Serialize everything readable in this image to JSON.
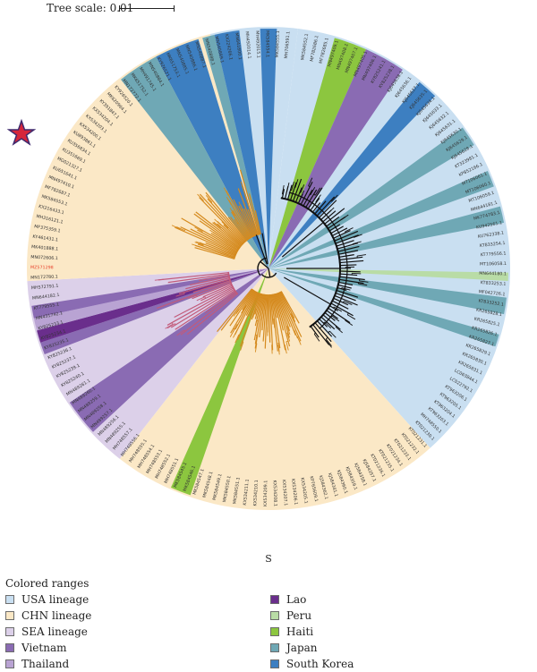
{
  "scale_label": "Tree scale: 0.01",
  "gene_label": "S",
  "legend": {
    "title": "Colored ranges",
    "items": [
      {
        "label": "USA lineage",
        "color": "#c9dff1"
      },
      {
        "label": "CHN lineage",
        "color": "#fbe8c6"
      },
      {
        "label": "SEA lineage",
        "color": "#dcd0e9"
      },
      {
        "label": "Vietnam",
        "color": "#8a6bb3"
      },
      {
        "label": "Thailand",
        "color": "#b9a3d3"
      },
      {
        "label": "Lao",
        "color": "#6a2e8c"
      },
      {
        "label": "Peru",
        "color": "#b9dca6"
      },
      {
        "label": "Haiti",
        "color": "#8cc63f"
      },
      {
        "label": "Japan",
        "color": "#6fa8b5"
      },
      {
        "label": "South Korea",
        "color": "#3d7fc1"
      }
    ]
  },
  "highlighted_leaf": "MZ571298",
  "leaves": [
    "MK584552.1",
    "MF782686.1",
    "MF782685.1",
    "MN497409.1",
    "MN497408.1",
    "MN497407.1",
    "MN497405.1",
    "MN497406.1",
    "KY825241.1",
    "KY825238.1",
    "KJ645638.1",
    "KJ645636.1",
    "KJ645637.1",
    "KJ645635.1",
    "KJ645634.1",
    "KJ645633.1",
    "KJ645632.1",
    "KJ645631.1",
    "KJ645630.1",
    "KJ645629.1",
    "KJ645628.1",
    "KT323981.1",
    "KP852166.1",
    "MT106061.1",
    "MT106060.1",
    "MT106059.1",
    "MN644181.1",
    "MK774783.1",
    "KU942561.1",
    "KU762338.1",
    "KT833254.1",
    "KT779556.1",
    "MT106058.1",
    "MN644180.1",
    "KT833253.1",
    "MF042726.1",
    "KT833252.1",
    "KR265828.1",
    "KR265825.1",
    "KR265826.1",
    "KR265827.1",
    "KR265829.1",
    "KR265830.1",
    "KR265831.1",
    "LC063844.1",
    "LC022792.1",
    "KT963206.1",
    "KT963205.1",
    "KT963204.1",
    "KT963203.1",
    "MH748550.1",
    "KT021230.1",
    "KT021231.1",
    "KT021232.1",
    "KT021233.1",
    "KT021234.1",
    "KT021235.1",
    "KT021236.1",
    "KJ584357.1",
    "KJ584358.1",
    "KJ584359.1",
    "KJ584360.1",
    "KJ584361.1",
    "KJ584362.1",
    "KP765609.1",
    "KX534205.1",
    "KX534206.1",
    "KX534207.1",
    "KX534208.1",
    "KX534209.1",
    "KX534210.1",
    "KX534211.1",
    "MK584551.1",
    "MK584550.1",
    "MK584549.1",
    "MK584548.1",
    "MK584547.1",
    "MK584546.1",
    "MK584545.1",
    "MH748551.1",
    "MH748552.1",
    "MH748553.1",
    "MH748554.1",
    "MH748555.1",
    "MH748556.1",
    "MH748557.1",
    "MN489255.1",
    "MN489256.1",
    "MN489257.1",
    "MN489258.1",
    "MN489259.1",
    "MN489260.1",
    "MN489261.1",
    "KY825240.1",
    "KY825239.1",
    "KY825237.1",
    "KY825236.1",
    "KY825235.1",
    "KY825234.1",
    "KY825233.1",
    "MN431742.1",
    "KT779555.1",
    "MN644182.1",
    "MH572791.1",
    "MN172780.1",
    "MZ571298",
    "MN072606.1",
    "MK401888.1",
    "KY461431.1",
    "MF375359.1",
    "MH316121.1",
    "KX216433.1",
    "MK584553.1",
    "MF782687.1",
    "MN497410.1",
    "KU651641.1",
    "MG021327.1",
    "KU351669.1",
    "KU356834.1",
    "KU893861.1",
    "KX534200.1",
    "KX534203.1",
    "KX534204.1",
    "KY391847.1",
    "MK620964.1",
    "KY926520.1",
    "MN172772.1",
    "MK651752.1",
    "MH491745.1",
    "MN540884.1",
    "KY926521.1",
    "MK651753.1",
    "MN540885.1",
    "MN540886.1",
    "MN540887.1",
    "MN540888.1",
    "MN540889.1",
    "KX224266.1",
    "MN641800.1",
    "MH492014.1",
    "MH492015.1",
    "MK584554.1",
    "MK584555.1",
    "MH706591.1"
  ]
}
